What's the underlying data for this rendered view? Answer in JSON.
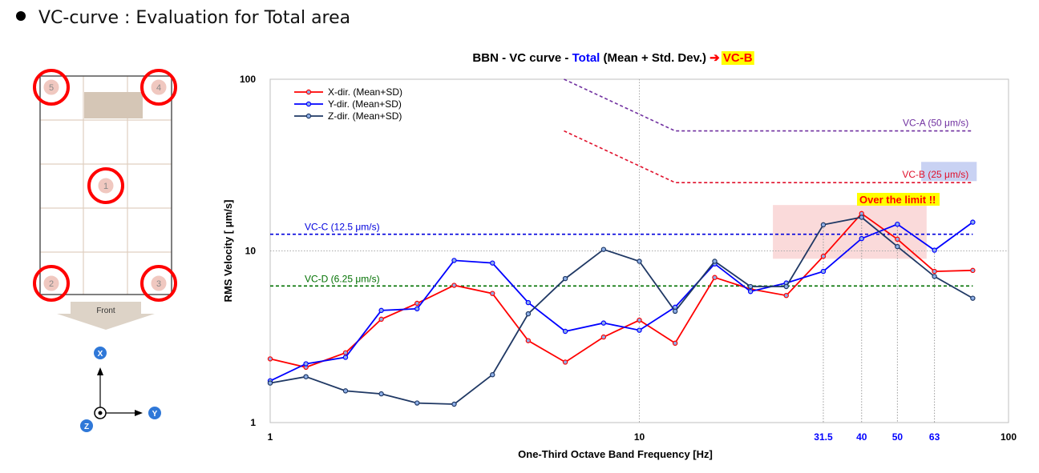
{
  "slide": {
    "title": "VC-curve : Evaluation for Total area"
  },
  "floor_plan": {
    "points": [
      "5",
      "4",
      "1",
      "2",
      "3"
    ],
    "front_label": "Front",
    "axes": {
      "x": "X",
      "y": "Y",
      "z": "Z"
    }
  },
  "chart_data": {
    "type": "line",
    "title_parts": [
      "BBN - VC curve - ",
      "Total",
      " (Mean + Std. Dev.) ",
      "➔",
      " ",
      "VC-B"
    ],
    "xlabel": "One-Third Octave Band Frequency [Hz]",
    "ylabel": "RMS Velocity [ μm/s]",
    "xscale": "log",
    "yscale": "log",
    "xlim": [
      1,
      100
    ],
    "ylim": [
      1,
      100
    ],
    "x_tick_labels": [
      "1",
      "10",
      "100"
    ],
    "highlight_ticks": [
      "31.5",
      "40",
      "50",
      "63"
    ],
    "y_tick_labels": [
      "1",
      "10",
      "100"
    ],
    "legend_position": "top-left",
    "x": [
      1,
      1.25,
      1.6,
      2,
      2.5,
      3.15,
      4,
      5,
      6.3,
      8,
      10,
      12.5,
      16,
      20,
      25,
      31.5,
      40,
      50,
      63,
      80
    ],
    "series": [
      {
        "name": "X-dir. (Mean+SD)",
        "color": "#ff0000",
        "values": [
          2.35,
          2.1,
          2.55,
          4.0,
          4.95,
          6.3,
          5.65,
          3.0,
          2.25,
          3.15,
          3.95,
          2.9,
          7.0,
          6.0,
          5.5,
          9.3,
          16.5,
          11.7,
          7.6,
          7.7
        ]
      },
      {
        "name": "Y-dir. (Mean+SD)",
        "color": "#0000ff",
        "values": [
          1.75,
          2.2,
          2.4,
          4.5,
          4.6,
          8.8,
          8.5,
          5.0,
          3.4,
          3.8,
          3.45,
          4.7,
          8.4,
          5.8,
          6.5,
          7.6,
          11.8,
          14.3,
          10.1,
          14.7
        ]
      },
      {
        "name": "Z-dir. (Mean+SD)",
        "color": "#1f3864",
        "values": [
          1.7,
          1.85,
          1.53,
          1.47,
          1.3,
          1.28,
          1.9,
          4.3,
          6.9,
          10.2,
          8.7,
          4.45,
          8.7,
          6.2,
          6.2,
          14.2,
          15.7,
          10.6,
          7.1,
          5.3
        ]
      }
    ],
    "criteria": [
      {
        "label": "VC-A (50 μm/s)",
        "value": 50,
        "color": "#7030a0"
      },
      {
        "label": "VC-B (25 μm/s)",
        "value": 25,
        "color": "#e0102b"
      },
      {
        "label": "VC-C (12.5 μm/s)",
        "value": 12.5,
        "color": "#0000dd"
      },
      {
        "label": "VC-D (6.25 μm/s)",
        "value": 6.25,
        "color": "#007000"
      }
    ],
    "annotation": "Over the limit !!"
  }
}
